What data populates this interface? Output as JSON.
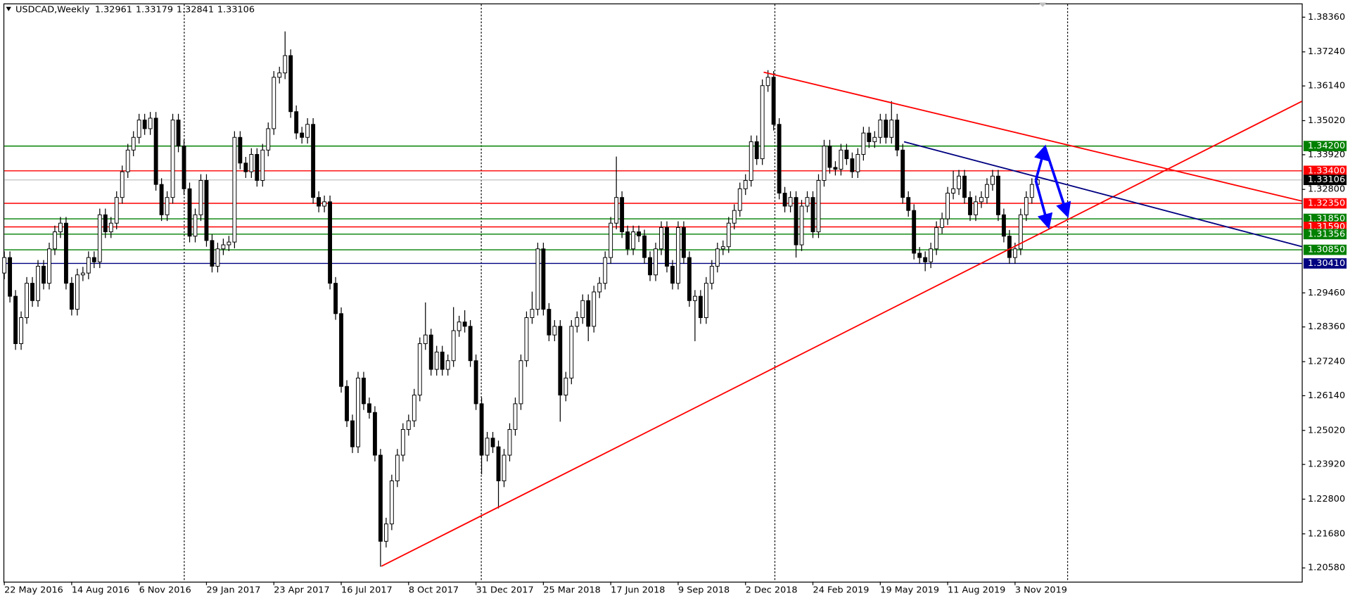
{
  "chart_data": {
    "type": "candlestick",
    "title": "USDCAD,Weekly",
    "categories": [
      "22 May 2016",
      null,
      null,
      null,
      null,
      null,
      null,
      null,
      null,
      null,
      null,
      null,
      "14 Aug 2016",
      null,
      null,
      null,
      null,
      null,
      null,
      null,
      null,
      null,
      null,
      null,
      "6 Nov 2016",
      null,
      null,
      null,
      null,
      null,
      null,
      null,
      null,
      null,
      null,
      null,
      "29 Jan 2017",
      null,
      null,
      null,
      null,
      null,
      null,
      null,
      null,
      null,
      null,
      null,
      "23 Apr 2017",
      null,
      null,
      null,
      null,
      null,
      null,
      null,
      null,
      null,
      null,
      null,
      "16 Jul 2017",
      null,
      null,
      null,
      null,
      null,
      null,
      null,
      null,
      null,
      null,
      null,
      "8 Oct 2017",
      null,
      null,
      null,
      null,
      null,
      null,
      null,
      null,
      null,
      null,
      null,
      "31 Dec 2017",
      null,
      null,
      null,
      null,
      null,
      null,
      null,
      null,
      null,
      null,
      null,
      "25 Mar 2018",
      null,
      null,
      null,
      null,
      null,
      null,
      null,
      null,
      null,
      null,
      null,
      "17 Jun 2018",
      null,
      null,
      null,
      null,
      null,
      null,
      null,
      null,
      null,
      null,
      null,
      "9 Sep 2018",
      null,
      null,
      null,
      null,
      null,
      null,
      null,
      null,
      null,
      null,
      null,
      "2 Dec 2018",
      null,
      null,
      null,
      null,
      null,
      null,
      null,
      null,
      null,
      null,
      null,
      "24 Feb 2019",
      null,
      null,
      null,
      null,
      null,
      null,
      null,
      null,
      null,
      null,
      null,
      "19 May 2019",
      null,
      null,
      null,
      null,
      null,
      null,
      null,
      null,
      null,
      null,
      null,
      "11 Aug 2019",
      null,
      null,
      null,
      null,
      null,
      null,
      null,
      null,
      null,
      null,
      null,
      "3 Nov 2019",
      null,
      null,
      null,
      null
    ],
    "ohlc": [
      [
        1.301,
        1.308,
        1.299,
        1.306
      ],
      [
        1.306,
        1.308,
        1.2915,
        1.2935
      ],
      [
        1.2935,
        1.2955,
        1.2762,
        1.2782
      ],
      [
        1.2782,
        1.2886,
        1.2762,
        1.2866
      ],
      [
        1.2866,
        1.2997,
        1.2846,
        1.2977
      ],
      [
        1.2977,
        1.2997,
        1.2901,
        1.2921
      ],
      [
        1.2921,
        1.3052,
        1.2901,
        1.3032
      ],
      [
        1.3032,
        1.3052,
        1.2957,
        1.2977
      ],
      [
        1.2977,
        1.3108,
        1.2957,
        1.3088
      ],
      [
        1.3088,
        1.3163,
        1.3068,
        1.3143
      ],
      [
        1.3143,
        1.3191,
        1.3123,
        1.3171
      ],
      [
        1.3171,
        1.3191,
        1.2957,
        1.2977
      ],
      [
        1.2977,
        1.2997,
        1.2873,
        1.2893
      ],
      [
        1.2893,
        1.3024,
        1.2873,
        1.3004
      ],
      [
        1.3004,
        1.303,
        1.2984,
        1.301
      ],
      [
        1.301,
        1.308,
        1.299,
        1.306
      ],
      [
        1.306,
        1.308,
        1.3026,
        1.3046
      ],
      [
        1.3046,
        1.3218,
        1.3026,
        1.3198
      ],
      [
        1.3198,
        1.3218,
        1.3123,
        1.3143
      ],
      [
        1.3143,
        1.3191,
        1.3123,
        1.3171
      ],
      [
        1.3171,
        1.3274,
        1.3151,
        1.3254
      ],
      [
        1.3254,
        1.3357,
        1.3234,
        1.3337
      ],
      [
        1.3337,
        1.3427,
        1.3317,
        1.3407
      ],
      [
        1.3407,
        1.3468,
        1.3387,
        1.3448
      ],
      [
        1.3448,
        1.3524,
        1.3428,
        1.3504
      ],
      [
        1.3504,
        1.3524,
        1.3456,
        1.3476
      ],
      [
        1.3476,
        1.353,
        1.3456,
        1.351
      ],
      [
        1.351,
        1.353,
        1.3276,
        1.3296
      ],
      [
        1.3296,
        1.3316,
        1.3178,
        1.3198
      ],
      [
        1.3198,
        1.3274,
        1.3178,
        1.3254
      ],
      [
        1.3254,
        1.3524,
        1.3234,
        1.3504
      ],
      [
        1.3504,
        1.3524,
        1.34,
        1.342
      ],
      [
        1.342,
        1.344,
        1.3262,
        1.3282
      ],
      [
        1.3282,
        1.3302,
        1.3109,
        1.3129
      ],
      [
        1.3129,
        1.3218,
        1.3109,
        1.3198
      ],
      [
        1.3198,
        1.3329,
        1.3178,
        1.3309
      ],
      [
        1.3309,
        1.3329,
        1.3095,
        1.3115
      ],
      [
        1.3115,
        1.3135,
        1.3012,
        1.3032
      ],
      [
        1.3032,
        1.3108,
        1.3012,
        1.3088
      ],
      [
        1.3088,
        1.3121,
        1.3068,
        1.3101
      ],
      [
        1.3101,
        1.313,
        1.3081,
        1.311
      ],
      [
        1.311,
        1.3468,
        1.309,
        1.3448
      ],
      [
        1.3448,
        1.3468,
        1.3345,
        1.3365
      ],
      [
        1.3365,
        1.3385,
        1.3317,
        1.3337
      ],
      [
        1.3337,
        1.3413,
        1.3317,
        1.3393
      ],
      [
        1.3393,
        1.3413,
        1.3289,
        1.3309
      ],
      [
        1.3309,
        1.3427,
        1.3289,
        1.3407
      ],
      [
        1.3407,
        1.3496,
        1.3387,
        1.3476
      ],
      [
        1.3476,
        1.3662,
        1.3456,
        1.3642
      ],
      [
        1.3642,
        1.3676,
        1.3622,
        1.3656
      ],
      [
        1.3656,
        1.379,
        1.3636,
        1.3712
      ],
      [
        1.3712,
        1.3732,
        1.3511,
        1.3531
      ],
      [
        1.3531,
        1.3551,
        1.3442,
        1.3462
      ],
      [
        1.3462,
        1.3482,
        1.3428,
        1.3448
      ],
      [
        1.3448,
        1.351,
        1.3428,
        1.349
      ],
      [
        1.349,
        1.351,
        1.3234,
        1.3254
      ],
      [
        1.3254,
        1.3274,
        1.3206,
        1.3226
      ],
      [
        1.3226,
        1.326,
        1.3206,
        1.324
      ],
      [
        1.324,
        1.326,
        1.2957,
        1.2977
      ],
      [
        1.2977,
        1.2997,
        1.2859,
        1.2879
      ],
      [
        1.2879,
        1.2899,
        1.2624,
        1.2644
      ],
      [
        1.2644,
        1.2664,
        1.2513,
        1.2533
      ],
      [
        1.2533,
        1.2553,
        1.2429,
        1.2449
      ],
      [
        1.2449,
        1.2691,
        1.2429,
        1.2671
      ],
      [
        1.2671,
        1.2691,
        1.2568,
        1.2588
      ],
      [
        1.2588,
        1.2608,
        1.254,
        1.256
      ],
      [
        1.256,
        1.258,
        1.2402,
        1.2422
      ],
      [
        1.2422,
        1.2442,
        1.2062,
        1.2144
      ],
      [
        1.2144,
        1.222,
        1.2124,
        1.22
      ],
      [
        1.22,
        1.2359,
        1.218,
        1.2339
      ],
      [
        1.2339,
        1.2442,
        1.2319,
        1.2422
      ],
      [
        1.2422,
        1.2525,
        1.2402,
        1.2505
      ],
      [
        1.2505,
        1.2553,
        1.2485,
        1.2533
      ],
      [
        1.2533,
        1.2636,
        1.2513,
        1.2616
      ],
      [
        1.2616,
        1.2802,
        1.2596,
        1.2782
      ],
      [
        1.2782,
        1.2915,
        1.2762,
        1.281
      ],
      [
        1.281,
        1.283,
        1.2679,
        1.2699
      ],
      [
        1.2699,
        1.2775,
        1.2679,
        1.2755
      ],
      [
        1.2755,
        1.2775,
        1.2679,
        1.2699
      ],
      [
        1.2699,
        1.2747,
        1.2679,
        1.2727
      ],
      [
        1.2727,
        1.29,
        1.2707,
        1.2824
      ],
      [
        1.2824,
        1.2872,
        1.2804,
        1.2852
      ],
      [
        1.2852,
        1.289,
        1.2818,
        1.2838
      ],
      [
        1.2838,
        1.2858,
        1.2707,
        1.2727
      ],
      [
        1.2727,
        1.2747,
        1.2568,
        1.2588
      ],
      [
        1.2588,
        1.2608,
        1.236,
        1.2422
      ],
      [
        1.2422,
        1.2497,
        1.2402,
        1.2477
      ],
      [
        1.2477,
        1.2497,
        1.2429,
        1.2449
      ],
      [
        1.2449,
        1.2469,
        1.225,
        1.2339
      ],
      [
        1.2339,
        1.2442,
        1.2319,
        1.2422
      ],
      [
        1.2422,
        1.2525,
        1.2402,
        1.2505
      ],
      [
        1.2505,
        1.2608,
        1.2485,
        1.2588
      ],
      [
        1.2588,
        1.2747,
        1.2568,
        1.2727
      ],
      [
        1.2727,
        1.2886,
        1.2707,
        1.2866
      ],
      [
        1.2866,
        1.295,
        1.2846,
        1.2893
      ],
      [
        1.2893,
        1.3108,
        1.2873,
        1.3088
      ],
      [
        1.3088,
        1.3108,
        1.2873,
        1.2893
      ],
      [
        1.2893,
        1.2913,
        1.279,
        1.281
      ],
      [
        1.281,
        1.2858,
        1.279,
        1.2838
      ],
      [
        1.2838,
        1.2858,
        1.253,
        1.2616
      ],
      [
        1.2616,
        1.2691,
        1.2596,
        1.2671
      ],
      [
        1.2671,
        1.2858,
        1.2651,
        1.2838
      ],
      [
        1.2838,
        1.2886,
        1.2818,
        1.2866
      ],
      [
        1.2866,
        1.2941,
        1.2846,
        1.2921
      ],
      [
        1.2921,
        1.2941,
        1.279,
        1.2838
      ],
      [
        1.2838,
        1.2969,
        1.2818,
        1.2949
      ],
      [
        1.2949,
        1.2997,
        1.2929,
        1.2977
      ],
      [
        1.2977,
        1.308,
        1.2957,
        1.306
      ],
      [
        1.306,
        1.3191,
        1.304,
        1.3171
      ],
      [
        1.3171,
        1.3386,
        1.3151,
        1.3254
      ],
      [
        1.3254,
        1.3274,
        1.3123,
        1.3143
      ],
      [
        1.3143,
        1.3163,
        1.3068,
        1.3088
      ],
      [
        1.3088,
        1.3163,
        1.3068,
        1.3143
      ],
      [
        1.3143,
        1.3163,
        1.311,
        1.313
      ],
      [
        1.313,
        1.315,
        1.304,
        1.306
      ],
      [
        1.306,
        1.308,
        1.2984,
        1.3004
      ],
      [
        1.3004,
        1.3108,
        1.2984,
        1.3088
      ],
      [
        1.3088,
        1.3177,
        1.3068,
        1.3157
      ],
      [
        1.3157,
        1.3177,
        1.3012,
        1.3032
      ],
      [
        1.3032,
        1.3052,
        1.2957,
        1.2977
      ],
      [
        1.2977,
        1.3177,
        1.2957,
        1.3157
      ],
      [
        1.3157,
        1.3177,
        1.304,
        1.306
      ],
      [
        1.306,
        1.308,
        1.2901,
        1.2921
      ],
      [
        1.2921,
        1.2955,
        1.279,
        1.2935
      ],
      [
        1.2935,
        1.2955,
        1.2846,
        1.2866
      ],
      [
        1.2866,
        1.2997,
        1.2846,
        1.2977
      ],
      [
        1.2977,
        1.3052,
        1.2957,
        1.3032
      ],
      [
        1.3032,
        1.3108,
        1.3012,
        1.3088
      ],
      [
        1.3088,
        1.3115,
        1.3068,
        1.3095
      ],
      [
        1.3095,
        1.3191,
        1.3075,
        1.3171
      ],
      [
        1.3171,
        1.3232,
        1.3151,
        1.3212
      ],
      [
        1.3212,
        1.3302,
        1.3192,
        1.3282
      ],
      [
        1.3282,
        1.3329,
        1.3262,
        1.3309
      ],
      [
        1.3309,
        1.3454,
        1.3289,
        1.3434
      ],
      [
        1.3434,
        1.3454,
        1.3359,
        1.3379
      ],
      [
        1.3379,
        1.3635,
        1.3359,
        1.3615
      ],
      [
        1.3615,
        1.3665,
        1.3595,
        1.3642
      ],
      [
        1.3642,
        1.3662,
        1.347,
        1.349
      ],
      [
        1.349,
        1.351,
        1.3248,
        1.3268
      ],
      [
        1.3268,
        1.3288,
        1.3206,
        1.3226
      ],
      [
        1.3226,
        1.3274,
        1.3206,
        1.3254
      ],
      [
        1.3254,
        1.3274,
        1.306,
        1.3101
      ],
      [
        1.3101,
        1.3246,
        1.3081,
        1.3226
      ],
      [
        1.3226,
        1.3274,
        1.3206,
        1.3254
      ],
      [
        1.3254,
        1.3274,
        1.3123,
        1.3143
      ],
      [
        1.3143,
        1.3329,
        1.3123,
        1.3309
      ],
      [
        1.3309,
        1.344,
        1.3289,
        1.342
      ],
      [
        1.342,
        1.344,
        1.3331,
        1.3351
      ],
      [
        1.3351,
        1.3371,
        1.3325,
        1.3345
      ],
      [
        1.3345,
        1.3427,
        1.3325,
        1.3407
      ],
      [
        1.3407,
        1.3427,
        1.3359,
        1.3379
      ],
      [
        1.3379,
        1.3399,
        1.3317,
        1.3337
      ],
      [
        1.3337,
        1.3413,
        1.3317,
        1.3393
      ],
      [
        1.3393,
        1.3482,
        1.3373,
        1.3462
      ],
      [
        1.3462,
        1.3482,
        1.3414,
        1.3434
      ],
      [
        1.3434,
        1.3468,
        1.3414,
        1.3448
      ],
      [
        1.3448,
        1.3524,
        1.3428,
        1.3504
      ],
      [
        1.3504,
        1.3524,
        1.3428,
        1.3448
      ],
      [
        1.3448,
        1.3565,
        1.3428,
        1.3504
      ],
      [
        1.3504,
        1.3524,
        1.3387,
        1.3407
      ],
      [
        1.3407,
        1.3427,
        1.3234,
        1.3254
      ],
      [
        1.3254,
        1.3274,
        1.3192,
        1.3212
      ],
      [
        1.3212,
        1.3232,
        1.3054,
        1.3074
      ],
      [
        1.3074,
        1.3094,
        1.304,
        1.306
      ],
      [
        1.306,
        1.308,
        1.3016,
        1.3046
      ],
      [
        1.3046,
        1.3108,
        1.3026,
        1.3088
      ],
      [
        1.3088,
        1.3177,
        1.3068,
        1.3157
      ],
      [
        1.3157,
        1.3205,
        1.3137,
        1.3185
      ],
      [
        1.3185,
        1.3288,
        1.3165,
        1.3268
      ],
      [
        1.3268,
        1.334,
        1.3248,
        1.3282
      ],
      [
        1.3282,
        1.3343,
        1.3262,
        1.3323
      ],
      [
        1.3323,
        1.3343,
        1.3234,
        1.3254
      ],
      [
        1.3254,
        1.3274,
        1.3178,
        1.3198
      ],
      [
        1.3198,
        1.326,
        1.3178,
        1.324
      ],
      [
        1.324,
        1.3274,
        1.322,
        1.3254
      ],
      [
        1.3254,
        1.3316,
        1.3234,
        1.3296
      ],
      [
        1.3296,
        1.3343,
        1.3276,
        1.3323
      ],
      [
        1.3323,
        1.3343,
        1.3178,
        1.3198
      ],
      [
        1.3198,
        1.3218,
        1.3109,
        1.3129
      ],
      [
        1.3129,
        1.3149,
        1.304,
        1.306
      ],
      [
        1.306,
        1.3108,
        1.304,
        1.3088
      ],
      [
        1.3088,
        1.3218,
        1.3068,
        1.3198
      ],
      [
        1.3198,
        1.3274,
        1.3178,
        1.3254
      ],
      [
        1.3254,
        1.3316,
        1.3234,
        1.3296
      ],
      [
        1.32961,
        1.33179,
        1.32841,
        1.33106
      ]
    ],
    "up_color": "#ffffff",
    "down_color": "#000000",
    "last_price_color": "#000000",
    "ylim": [
      1.20136,
      1.38776
    ],
    "yticks": [
      {
        "value": 1.3836,
        "label": "1.38360"
      },
      {
        "value": 1.3724,
        "label": "1.37240"
      },
      {
        "value": 1.3614,
        "label": "1.36140"
      },
      {
        "value": 1.3502,
        "label": "1.35020"
      },
      {
        "value": 1.3392,
        "label": "1.33920"
      },
      {
        "value": 1.328,
        "label": "1.32800"
      },
      {
        "value": 1.2946,
        "label": "1.29460"
      },
      {
        "value": 1.2836,
        "label": "1.28360"
      },
      {
        "value": 1.2724,
        "label": "1.27240"
      },
      {
        "value": 1.2614,
        "label": "1.26140"
      },
      {
        "value": 1.2502,
        "label": "1.25020"
      },
      {
        "value": 1.2392,
        "label": "1.23920"
      },
      {
        "value": 1.228,
        "label": "1.22800"
      },
      {
        "value": 1.2168,
        "label": "1.21680"
      },
      {
        "value": 1.2058,
        "label": "1.20580"
      }
    ],
    "levels": [
      {
        "value": 1.342,
        "label": "1.34200",
        "color": "#008000"
      },
      {
        "value": 1.334,
        "label": "1.33400",
        "color": "#ff0000"
      },
      {
        "value": 1.3235,
        "label": "1.32350",
        "color": "#ff0000"
      },
      {
        "value": 1.3185,
        "label": "1.31850",
        "color": "#008000"
      },
      {
        "value": 1.3159,
        "label": "1.31590",
        "color": "#ff0000"
      },
      {
        "value": 1.31356,
        "label": "1.31356",
        "color": "#008000"
      },
      {
        "value": 1.3085,
        "label": "1.30850",
        "color": "#008000"
      },
      {
        "value": 1.3041,
        "label": "1.30410",
        "color": "#000080"
      }
    ],
    "grid": false
  }
}
